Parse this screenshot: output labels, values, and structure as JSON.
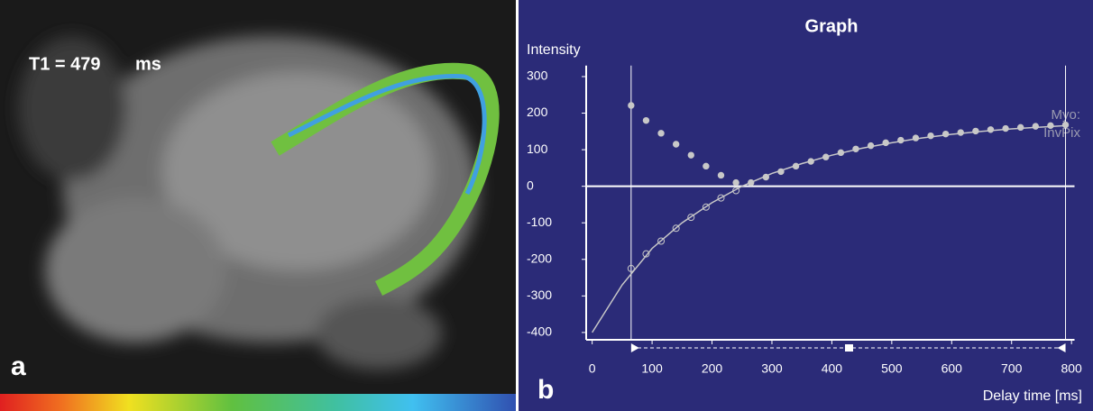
{
  "image_panel": {
    "annotation": "T1 = 479",
    "unit": "ms",
    "label": "a"
  },
  "chart_data": {
    "type": "scatter",
    "panel_label": "b",
    "title": "Graph",
    "y_label": "Intensity",
    "x_label": "Delay time [ms]",
    "legend_labels": [
      "Myo:",
      "InvPix"
    ],
    "xlim": [
      -10,
      805
    ],
    "ylim": [
      -420,
      330
    ],
    "xticks": [
      0,
      100,
      200,
      300,
      400,
      500,
      600,
      700,
      800
    ],
    "yticks": [
      300,
      200,
      100,
      0,
      -100,
      -200,
      -300,
      -400
    ],
    "cursors": [
      65,
      790
    ],
    "series": [
      {
        "marker": "filled",
        "color": "#c8c8c8",
        "x": [
          65,
          90,
          115,
          140,
          165,
          190,
          215,
          240,
          265,
          290,
          315,
          340,
          365,
          390,
          415,
          440,
          465,
          490,
          515,
          540,
          565,
          590,
          615,
          640,
          665,
          690,
          715,
          740,
          765,
          790
        ],
        "values": [
          221,
          180,
          145,
          115,
          85,
          55,
          30,
          10,
          10,
          25,
          40,
          55,
          68,
          80,
          92,
          102,
          111,
          119,
          126,
          132,
          138,
          143,
          147,
          151,
          155,
          158,
          161,
          164,
          166,
          168
        ]
      },
      {
        "marker": "open",
        "color": "#c8c8c8",
        "x": [
          65,
          90,
          115,
          140,
          165,
          190,
          215,
          240
        ],
        "values": [
          -225,
          -185,
          -150,
          -115,
          -85,
          -57,
          -32,
          -12
        ]
      },
      {
        "marker": "line",
        "color": "#c8c8c8",
        "x": [
          0,
          50,
          100,
          150,
          200,
          250,
          300,
          350,
          400,
          450,
          500,
          550,
          600,
          650,
          700,
          750,
          790
        ],
        "values": [
          -400,
          -270,
          -170,
          -100,
          -45,
          0,
          35,
          62,
          85,
          104,
          119,
          132,
          142,
          150,
          157,
          162,
          166
        ]
      }
    ]
  }
}
